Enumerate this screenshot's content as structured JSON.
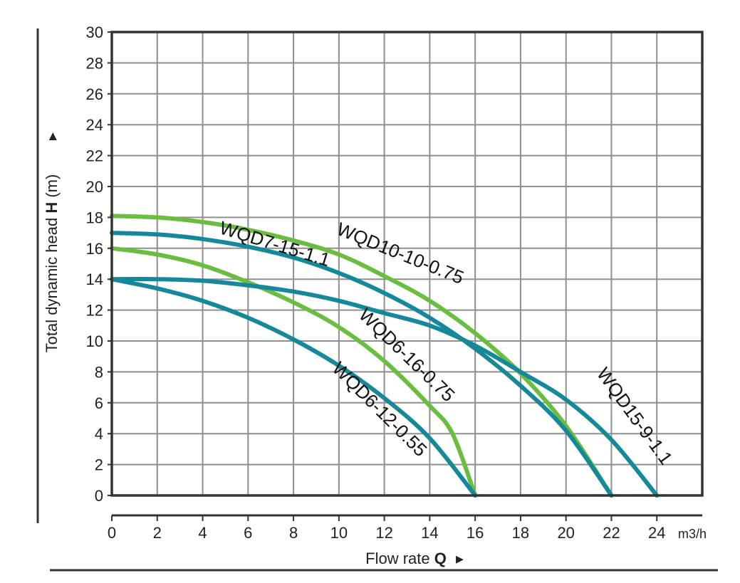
{
  "chart_data": {
    "type": "line",
    "xlabel": {
      "prefix": "Flow rate ",
      "symbol": "Q",
      "arrow": "▸"
    },
    "ylabel": {
      "prefix": "Total dynamic head ",
      "symbol": "H",
      "suffix": " (m)",
      "arrow": "▸"
    },
    "x_unit": "m3/h",
    "xlim": [
      0,
      26
    ],
    "ylim": [
      0,
      30
    ],
    "x_ticks": [
      0,
      2,
      4,
      6,
      8,
      10,
      12,
      14,
      16,
      18,
      20,
      22,
      24
    ],
    "y_ticks": [
      0,
      2,
      4,
      6,
      8,
      10,
      12,
      14,
      16,
      18,
      20,
      22,
      24,
      26,
      28,
      30
    ],
    "grid": true,
    "colors": {
      "green": "#6abe3f",
      "teal": "#15899a",
      "grid": "#8f8f8f",
      "frame": "#333333"
    },
    "series": [
      {
        "name": "WQD10-10-0.75",
        "color": "green",
        "points": [
          [
            0,
            18.1
          ],
          [
            2,
            18.0
          ],
          [
            4,
            17.7
          ],
          [
            6,
            17.2
          ],
          [
            8,
            16.5
          ],
          [
            10,
            15.6
          ],
          [
            12,
            14.2
          ],
          [
            14,
            12.6
          ],
          [
            16,
            10.5
          ],
          [
            18,
            7.9
          ],
          [
            20,
            4.5
          ],
          [
            22,
            0
          ]
        ]
      },
      {
        "name": "WQD7-15-1.1",
        "color": "teal",
        "points": [
          [
            0,
            17.0
          ],
          [
            2,
            16.9
          ],
          [
            4,
            16.6
          ],
          [
            6,
            16.1
          ],
          [
            8,
            15.4
          ],
          [
            10,
            14.4
          ],
          [
            12,
            13.1
          ],
          [
            14,
            11.5
          ],
          [
            16,
            9.5
          ],
          [
            18,
            7.1
          ],
          [
            20,
            4.2
          ],
          [
            22,
            0
          ]
        ]
      },
      {
        "name": "WQD6-16-0.75",
        "color": "green",
        "points": [
          [
            0,
            16.0
          ],
          [
            2,
            15.6
          ],
          [
            4,
            14.9
          ],
          [
            6,
            13.8
          ],
          [
            8,
            12.5
          ],
          [
            10,
            10.9
          ],
          [
            12,
            8.7
          ],
          [
            14,
            5.8
          ],
          [
            15,
            4.0
          ],
          [
            16,
            0
          ]
        ]
      },
      {
        "name": "WQD15-9-1.1",
        "color": "teal",
        "points": [
          [
            0,
            14.0
          ],
          [
            2,
            14.0
          ],
          [
            4,
            13.9
          ],
          [
            6,
            13.6
          ],
          [
            8,
            13.2
          ],
          [
            10,
            12.6
          ],
          [
            12,
            11.8
          ],
          [
            14,
            11.0
          ],
          [
            16,
            9.7
          ],
          [
            18,
            8.0
          ],
          [
            20,
            6.2
          ],
          [
            22,
            3.6
          ],
          [
            24,
            0
          ]
        ]
      },
      {
        "name": "WQD6-12-0.55",
        "color": "teal",
        "points": [
          [
            0,
            14.0
          ],
          [
            2,
            13.4
          ],
          [
            4,
            12.6
          ],
          [
            6,
            11.5
          ],
          [
            8,
            10.1
          ],
          [
            10,
            8.4
          ],
          [
            12,
            6.3
          ],
          [
            14,
            3.7
          ],
          [
            16,
            0
          ]
        ]
      }
    ],
    "curve_labels": [
      {
        "text": "WQD10-10-0.75",
        "x": 12.6,
        "y": 15.3,
        "angle": 22,
        "color": "green"
      },
      {
        "text": "WQD7-15-1.1",
        "x": 7.1,
        "y": 15.9,
        "angle": 17,
        "color": "teal"
      },
      {
        "text": "WQD6-16-0.75",
        "x": 12.8,
        "y": 8.8,
        "angle": 44,
        "color": "green"
      },
      {
        "text": "WQD6-12-0.55",
        "x": 11.6,
        "y": 5.3,
        "angle": 45,
        "color": "teal"
      },
      {
        "text": "WQD15-9-1.1",
        "x": 22.8,
        "y": 4.9,
        "angle": 54,
        "color": "teal"
      }
    ]
  }
}
